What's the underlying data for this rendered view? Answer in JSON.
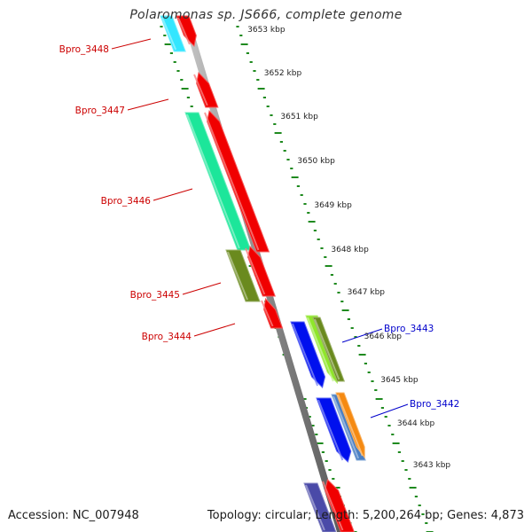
{
  "title": "Polaromonas sp. JS666, complete genome",
  "footer": {
    "accession": "Accession: NC_007948",
    "summary": "Topology: circular; Length: 5,200,264 bp; Genes: 4,873"
  },
  "colors": {
    "backbone": "#8c8c8c",
    "ruler": "#1f8a1f",
    "reverse_label": "#cc0000",
    "forward_label": "#0000cc"
  },
  "kbp_labels": [
    {
      "text": "3653 kbp",
      "kbp": 3653
    },
    {
      "text": "3652 kbp",
      "kbp": 3652
    },
    {
      "text": "3651 kbp",
      "kbp": 3651
    },
    {
      "text": "3650 kbp",
      "kbp": 3650
    },
    {
      "text": "3649 kbp",
      "kbp": 3649
    },
    {
      "text": "3648 kbp",
      "kbp": 3648
    },
    {
      "text": "3647 kbp",
      "kbp": 3647
    },
    {
      "text": "3646 kbp",
      "kbp": 3646
    },
    {
      "text": "3645 kbp",
      "kbp": 3645
    },
    {
      "text": "3644 kbp",
      "kbp": 3644
    },
    {
      "text": "3643 kbp",
      "kbp": 3643
    }
  ],
  "gene_labels": [
    {
      "text": "Bpro_3448",
      "strand": "reverse"
    },
    {
      "text": "Bpro_3447",
      "strand": "reverse"
    },
    {
      "text": "Bpro_3446",
      "strand": "reverse"
    },
    {
      "text": "Bpro_3445",
      "strand": "reverse"
    },
    {
      "text": "Bpro_3444",
      "strand": "reverse"
    },
    {
      "text": "Bpro_3443",
      "strand": "forward"
    },
    {
      "text": "Bpro_3442",
      "strand": "forward"
    }
  ],
  "features": [
    {
      "name": "cds-cyan",
      "color": "#33e6ff"
    },
    {
      "name": "cds-red-a",
      "color": "#f00000"
    },
    {
      "name": "cds-red-b",
      "color": "#f00000"
    },
    {
      "name": "cds-red-c",
      "color": "#f00000"
    },
    {
      "name": "cds-green",
      "color": "#1ce69a"
    },
    {
      "name": "cds-olive",
      "color": "#6a8a1e"
    },
    {
      "name": "cds-red-d",
      "color": "#f00000"
    },
    {
      "name": "cds-red-e",
      "color": "#f00000"
    },
    {
      "name": "cds-blue-a",
      "color": "#0010ee"
    },
    {
      "name": "cds-lime",
      "color": "#8fe62a"
    },
    {
      "name": "cds-olive-b",
      "color": "#6a8a1e"
    },
    {
      "name": "cds-blue-b",
      "color": "#0010ee"
    },
    {
      "name": "cds-steel",
      "color": "#4a7fc4"
    },
    {
      "name": "cds-orange",
      "color": "#f58a12"
    },
    {
      "name": "cds-purple",
      "color": "#4a4aa8"
    },
    {
      "name": "cds-red-f",
      "color": "#f00000"
    }
  ]
}
